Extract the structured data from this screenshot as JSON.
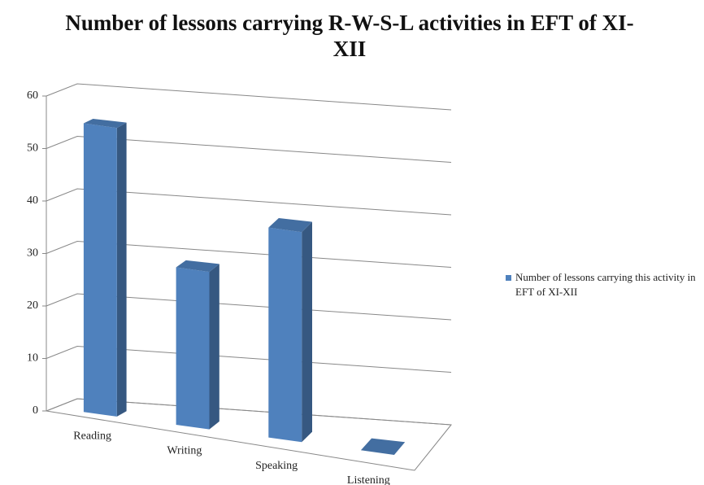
{
  "chart_data": {
    "type": "bar3d",
    "title": "Number of lessons carrying R-W-S-L activities in EFT of XI-XII",
    "categories": [
      "Reading",
      "Writing",
      "Speaking",
      "Listening"
    ],
    "series": [
      {
        "name": "Number of lessons carrying this activity in EFT of XI-XII",
        "color": "#4f81bd",
        "values": [
          55,
          30,
          40,
          0
        ]
      }
    ],
    "ylim": [
      0,
      60
    ],
    "yticks": [
      0,
      10,
      20,
      30,
      40,
      50,
      60
    ],
    "grid": true,
    "legend": "right"
  }
}
